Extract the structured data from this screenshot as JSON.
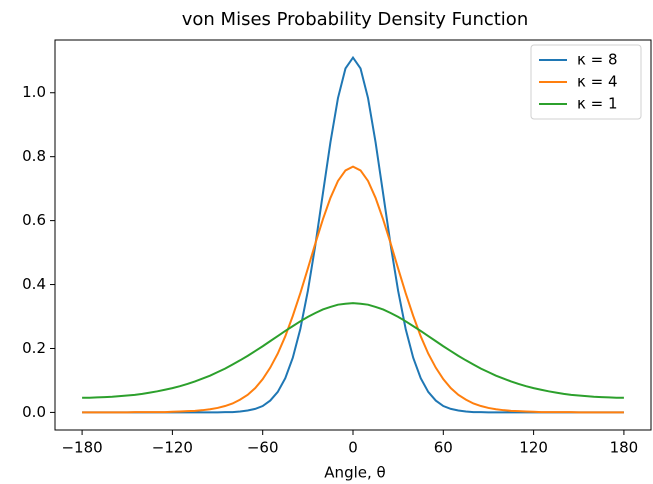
{
  "chart_data": {
    "type": "line",
    "title": "von Mises Probability Density Function",
    "xlabel": "Angle, θ",
    "x": [
      -180,
      -175,
      -170,
      -165,
      -160,
      -155,
      -150,
      -145,
      -140,
      -135,
      -130,
      -125,
      -120,
      -115,
      -110,
      -105,
      -100,
      -95,
      -90,
      -85,
      -80,
      -75,
      -70,
      -65,
      -60,
      -55,
      -50,
      -45,
      -40,
      -35,
      -30,
      -25,
      -20,
      -15,
      -10,
      -5,
      0,
      5,
      10,
      15,
      20,
      25,
      30,
      35,
      40,
      45,
      50,
      55,
      60,
      65,
      70,
      75,
      80,
      85,
      90,
      95,
      100,
      105,
      110,
      115,
      120,
      125,
      130,
      135,
      140,
      145,
      150,
      155,
      160,
      165,
      170,
      175,
      180
    ],
    "series": [
      {
        "name": "κ = 8",
        "color": "#1f77b4",
        "values": [
          0,
          0,
          0,
          0,
          0,
          0,
          0,
          0,
          0,
          0,
          0,
          0,
          0,
          0,
          0,
          0,
          0,
          0,
          0,
          0.001,
          0.001,
          0.003,
          0.006,
          0.011,
          0.02,
          0.037,
          0.064,
          0.107,
          0.171,
          0.261,
          0.38,
          0.524,
          0.685,
          0.845,
          0.983,
          1.076,
          1.11,
          1.076,
          0.983,
          0.845,
          0.685,
          0.524,
          0.38,
          0.261,
          0.171,
          0.107,
          0.064,
          0.037,
          0.02,
          0.011,
          0.006,
          0.003,
          0.001,
          0.001,
          0,
          0,
          0,
          0,
          0,
          0,
          0,
          0,
          0,
          0,
          0,
          0,
          0,
          0,
          0,
          0,
          0,
          0,
          0
        ]
      },
      {
        "name": "κ = 4",
        "color": "#ff7f0e",
        "values": [
          0,
          0,
          0,
          0,
          0,
          0,
          0,
          0.001,
          0.001,
          0.001,
          0.001,
          0.001,
          0.002,
          0.003,
          0.004,
          0.005,
          0.007,
          0.01,
          0.014,
          0.02,
          0.028,
          0.04,
          0.055,
          0.076,
          0.104,
          0.14,
          0.184,
          0.238,
          0.302,
          0.373,
          0.45,
          0.529,
          0.604,
          0.671,
          0.724,
          0.757,
          0.769,
          0.757,
          0.724,
          0.671,
          0.604,
          0.529,
          0.45,
          0.373,
          0.302,
          0.238,
          0.184,
          0.14,
          0.104,
          0.076,
          0.055,
          0.04,
          0.028,
          0.02,
          0.014,
          0.01,
          0.007,
          0.005,
          0.004,
          0.003,
          0.002,
          0.001,
          0.001,
          0.001,
          0.001,
          0.001,
          0,
          0,
          0,
          0,
          0,
          0,
          0
        ]
      },
      {
        "name": "κ = 1",
        "color": "#2ca02c",
        "values": [
          0.046,
          0.046,
          0.047,
          0.048,
          0.049,
          0.051,
          0.053,
          0.055,
          0.058,
          0.062,
          0.066,
          0.071,
          0.076,
          0.082,
          0.089,
          0.097,
          0.106,
          0.115,
          0.126,
          0.137,
          0.15,
          0.163,
          0.177,
          0.192,
          0.207,
          0.223,
          0.239,
          0.255,
          0.27,
          0.285,
          0.299,
          0.311,
          0.322,
          0.33,
          0.337,
          0.34,
          0.342,
          0.34,
          0.337,
          0.33,
          0.322,
          0.311,
          0.299,
          0.285,
          0.27,
          0.255,
          0.239,
          0.223,
          0.207,
          0.192,
          0.177,
          0.163,
          0.15,
          0.137,
          0.126,
          0.115,
          0.106,
          0.097,
          0.089,
          0.082,
          0.076,
          0.071,
          0.066,
          0.062,
          0.058,
          0.055,
          0.053,
          0.051,
          0.049,
          0.048,
          0.047,
          0.046,
          0.046
        ]
      }
    ],
    "xlim": [
      -198,
      198
    ],
    "ylim": [
      -0.055,
      1.165
    ],
    "xticks": [
      {
        "value": -180,
        "label": "−180"
      },
      {
        "value": -120,
        "label": "−120"
      },
      {
        "value": -60,
        "label": "−60"
      },
      0,
      60,
      120,
      180
    ],
    "yticks": [
      {
        "value": 0,
        "label": "0.0"
      },
      0.2,
      0.4,
      0.6,
      0.8,
      {
        "value": 1,
        "label": "1.0"
      }
    ],
    "grid": false,
    "legend": "upper right"
  }
}
